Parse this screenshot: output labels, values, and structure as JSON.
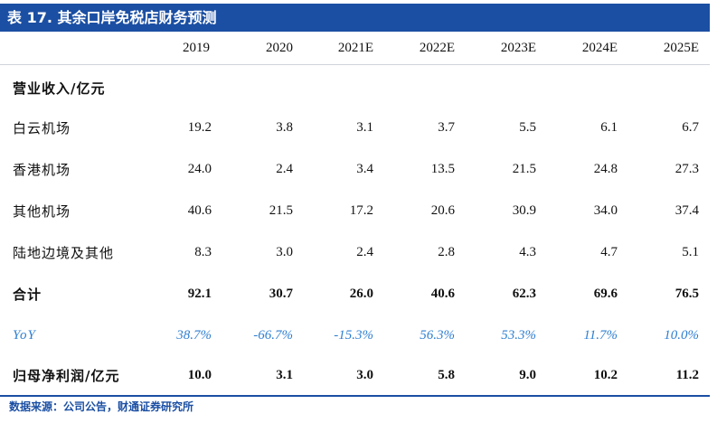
{
  "title": "表 17. 其余口岸免税店财务预测",
  "columns": [
    "2019",
    "2020",
    "2021E",
    "2022E",
    "2023E",
    "2024E",
    "2025E"
  ],
  "rows": [
    {
      "label": "营业收入/亿元",
      "values": [
        "",
        "",
        "",
        "",
        "",
        "",
        ""
      ]
    },
    {
      "label": "白云机场",
      "values": [
        "19.2",
        "3.8",
        "3.1",
        "3.7",
        "5.5",
        "6.1",
        "6.7"
      ]
    },
    {
      "label": "香港机场",
      "values": [
        "24.0",
        "2.4",
        "3.4",
        "13.5",
        "21.5",
        "24.8",
        "27.3"
      ]
    },
    {
      "label": "其他机场",
      "values": [
        "40.6",
        "21.5",
        "17.2",
        "20.6",
        "30.9",
        "34.0",
        "37.4"
      ]
    },
    {
      "label": "陆地边境及其他",
      "values": [
        "8.3",
        "3.0",
        "2.4",
        "2.8",
        "4.3",
        "4.7",
        "5.1"
      ]
    },
    {
      "label": "合计",
      "values": [
        "92.1",
        "30.7",
        "26.0",
        "40.6",
        "62.3",
        "69.6",
        "76.5"
      ]
    },
    {
      "label": "YoY",
      "values": [
        "38.7%",
        "-66.7%",
        "-15.3%",
        "56.3%",
        "53.3%",
        "11.7%",
        "10.0%"
      ]
    },
    {
      "label": "归母净利润/亿元",
      "values": [
        "10.0",
        "3.1",
        "3.0",
        "5.8",
        "9.0",
        "10.2",
        "11.2"
      ]
    }
  ],
  "source": "数据来源：公司公告，财通证券研究所",
  "colors": {
    "title_bg": "#1b4fa3",
    "yoy": "#2f7fd1"
  }
}
